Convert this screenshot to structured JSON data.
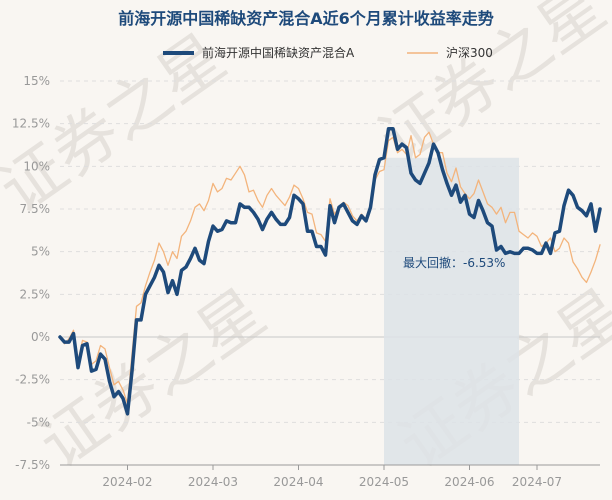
{
  "chart_data": {
    "type": "line",
    "title": "前海开源中国稀缺资产混合A近6个月累计收益率走势",
    "watermark": "证券之星",
    "x_labels": [
      "2024-02",
      "2024-03",
      "2024-04",
      "2024-05",
      "2024-06",
      "2024-07"
    ],
    "x_label_index": [
      15,
      34,
      53,
      72,
      91,
      106
    ],
    "y_ticks": [
      "15%",
      "12.5%",
      "10%",
      "7.5%",
      "5%",
      "2.5%",
      "0%",
      "-2.5%",
      "-5%",
      "-7.5%"
    ],
    "ylim": [
      -7.5,
      15
    ],
    "drawdown": {
      "label": "最大回撤：-6.53%",
      "start_index": 72,
      "end_index": 102,
      "value": -6.53
    },
    "series": [
      {
        "name": "前海开源中国稀缺资产混合A",
        "color": "#1e4a7b",
        "values": [
          0,
          -0.3,
          -0.3,
          0.2,
          -1.8,
          -0.5,
          -0.4,
          -2.0,
          -1.9,
          -1.0,
          -1.3,
          -2.6,
          -3.5,
          -3.2,
          -3.6,
          -4.5,
          -2.0,
          1.0,
          1.0,
          2.5,
          3.0,
          3.5,
          4.2,
          3.8,
          2.6,
          3.3,
          2.5,
          3.9,
          4.1,
          4.6,
          5.2,
          4.5,
          4.3,
          5.6,
          6.5,
          6.2,
          6.3,
          6.8,
          6.7,
          6.7,
          7.8,
          7.6,
          7.6,
          7.3,
          6.9,
          6.3,
          6.9,
          7.3,
          6.9,
          6.6,
          6.6,
          7.0,
          8.3,
          8.1,
          7.8,
          6.2,
          6.2,
          5.3,
          5.3,
          4.8,
          7.7,
          6.7,
          7.6,
          7.8,
          7.3,
          6.8,
          6.6,
          7.1,
          6.8,
          7.6,
          9.5,
          10.4,
          10.5,
          12.2,
          12.2,
          11.0,
          11.3,
          11.1,
          9.6,
          9.2,
          9.0,
          9.6,
          10.2,
          11.3,
          10.8,
          9.8,
          9.0,
          8.3,
          8.9,
          7.9,
          8.3,
          7.2,
          7.0,
          8.0,
          7.4,
          6.7,
          6.5,
          5.1,
          5.3,
          4.9,
          5.0,
          4.9,
          4.9,
          5.2,
          5.2,
          5.1,
          4.9,
          4.9,
          5.5,
          4.9,
          6.1,
          6.2,
          7.7,
          8.6,
          8.3,
          7.6,
          7.4,
          7.1,
          7.8,
          6.2,
          7.5
        ]
      },
      {
        "name": "沪深300",
        "color": "#f3b47c",
        "values": [
          0,
          -0.4,
          -0.1,
          0.4,
          -1.4,
          -0.2,
          -0.3,
          -1.6,
          -1.4,
          -0.5,
          -0.7,
          -1.8,
          -2.8,
          -2.6,
          -3.1,
          -3.9,
          -1.0,
          1.8,
          2.0,
          3.0,
          3.8,
          4.5,
          5.5,
          5.0,
          4.2,
          5.0,
          4.6,
          5.9,
          6.2,
          6.8,
          7.6,
          7.8,
          7.4,
          8.0,
          9.0,
          8.5,
          8.7,
          9.3,
          9.2,
          9.6,
          10.0,
          9.5,
          8.5,
          8.6,
          8.0,
          7.6,
          8.3,
          8.7,
          8.3,
          8.0,
          7.7,
          8.2,
          8.9,
          8.7,
          8.1,
          7.3,
          7.2,
          6.1,
          6.0,
          5.6,
          8.1,
          7.2,
          7.6,
          7.9,
          7.7,
          7.1,
          6.8,
          7.2,
          6.9,
          7.6,
          9.2,
          9.7,
          9.8,
          11.5,
          11.7,
          10.8,
          11.0,
          10.7,
          11.8,
          10.5,
          10.7,
          11.7,
          12.0,
          11.3,
          10.8,
          10.8,
          9.6,
          9.1,
          9.9,
          8.8,
          8.4,
          8.1,
          8.4,
          9.2,
          8.5,
          7.8,
          7.6,
          7.2,
          7.6,
          6.7,
          7.3,
          7.3,
          6.2,
          6.0,
          5.8,
          6.1,
          5.9,
          5.3,
          5.5,
          5.8,
          5.0,
          5.2,
          5.8,
          5.5,
          4.4,
          4.0,
          3.5,
          3.2,
          3.8,
          4.5,
          5.4
        ]
      }
    ]
  }
}
